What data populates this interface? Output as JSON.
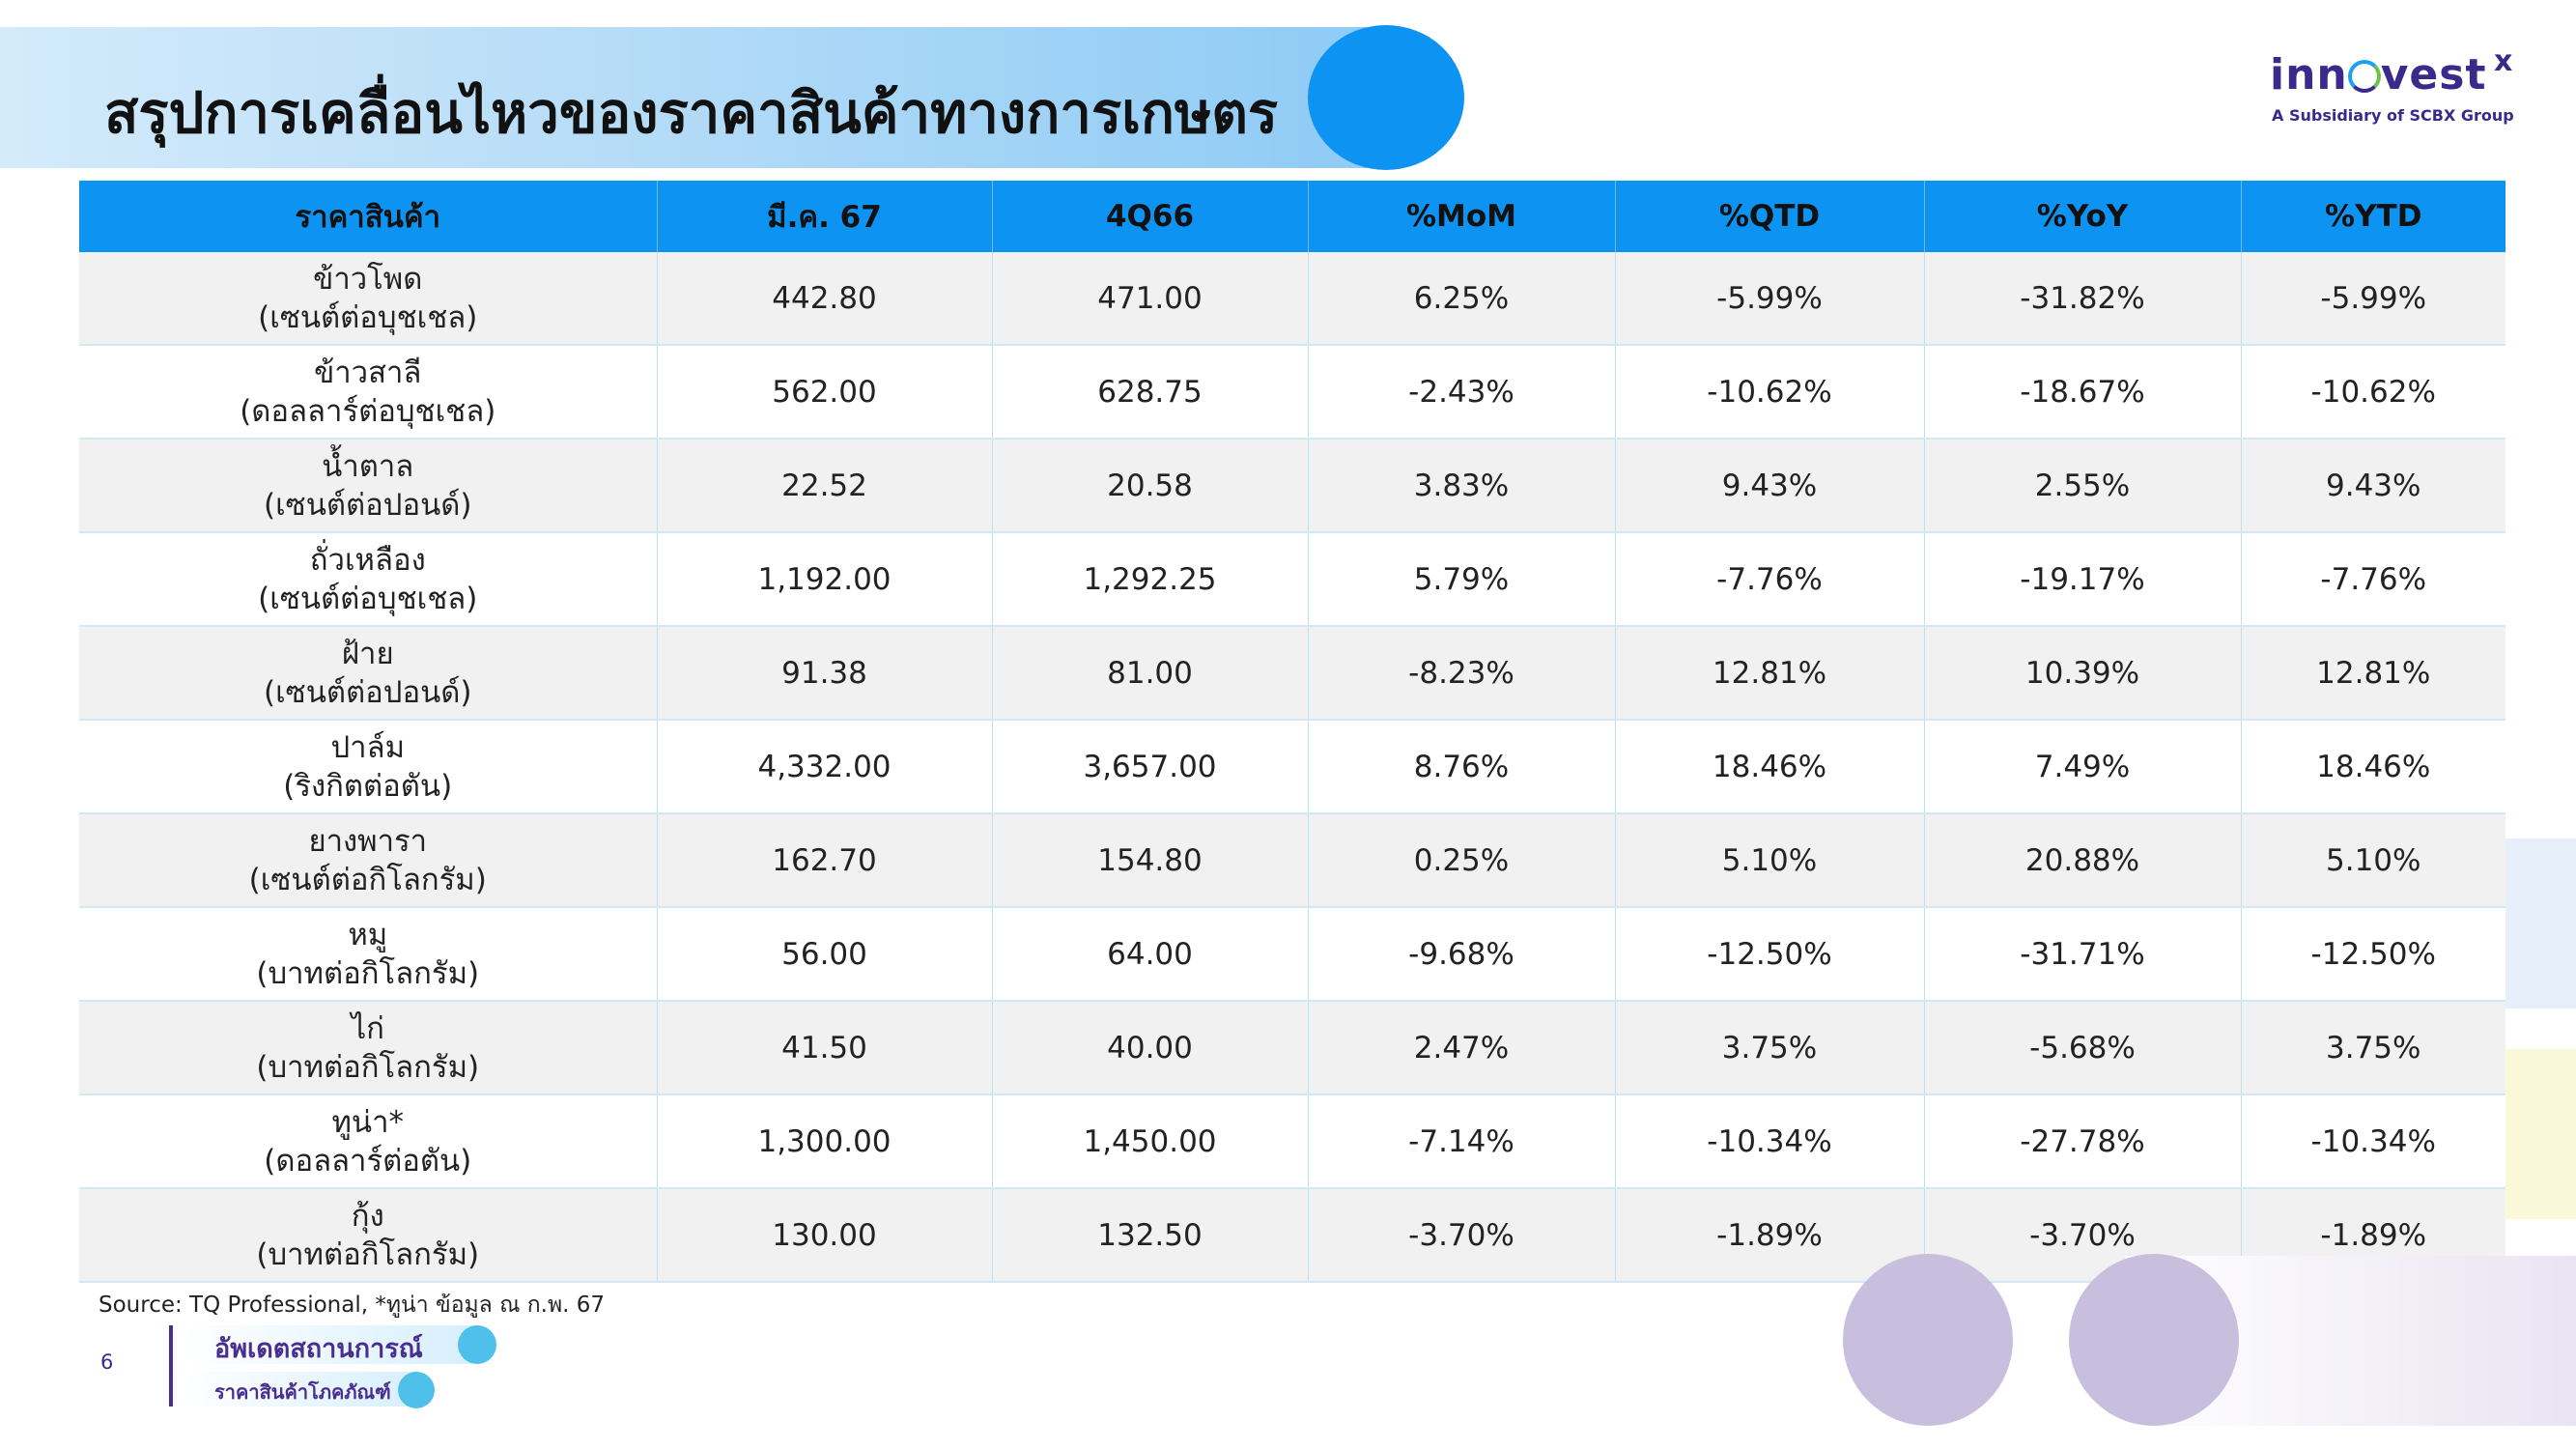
{
  "title": "สรุปการเคลื่อนไหวของราคาสินค้าทางการเกษตร",
  "logo": {
    "word_a": "inn",
    "word_b": "vest",
    "x": "x",
    "subtitle": "A Subsidiary of SCBX Group"
  },
  "table": {
    "headers": [
      "ราคาสินค้า",
      "มี.ค. 67",
      "4Q66",
      "%MoM",
      "%QTD",
      "%YoY",
      "%YTD"
    ],
    "rows": [
      {
        "name": "ข้าวโพด",
        "unit": "(เซนต์ต่อบุชเชล)",
        "mar67": "442.80",
        "q466": "471.00",
        "mom": "6.25%",
        "qtd": "-5.99%",
        "yoy": "-31.82%",
        "ytd": "-5.99%"
      },
      {
        "name": "ข้าวสาลี",
        "unit": "(ดอลลาร์ต่อบุชเชล)",
        "mar67": "562.00",
        "q466": "628.75",
        "mom": "-2.43%",
        "qtd": "-10.62%",
        "yoy": "-18.67%",
        "ytd": "-10.62%"
      },
      {
        "name": "น้ำตาล",
        "unit": "(เซนต์ต่อปอนด์)",
        "mar67": "22.52",
        "q466": "20.58",
        "mom": "3.83%",
        "qtd": "9.43%",
        "yoy": "2.55%",
        "ytd": "9.43%"
      },
      {
        "name": "ถั่วเหลือง",
        "unit": "(เซนต์ต่อบุชเชล)",
        "mar67": "1,192.00",
        "q466": "1,292.25",
        "mom": "5.79%",
        "qtd": "-7.76%",
        "yoy": "-19.17%",
        "ytd": "-7.76%"
      },
      {
        "name": "ฝ้าย",
        "unit": "(เซนต์ต่อปอนด์)",
        "mar67": "91.38",
        "q466": "81.00",
        "mom": "-8.23%",
        "qtd": "12.81%",
        "yoy": "10.39%",
        "ytd": "12.81%"
      },
      {
        "name": "ปาล์ม",
        "unit": "(ริงกิตต่อตัน)",
        "mar67": "4,332.00",
        "q466": "3,657.00",
        "mom": "8.76%",
        "qtd": "18.46%",
        "yoy": "7.49%",
        "ytd": "18.46%"
      },
      {
        "name": "ยางพารา",
        "unit": "(เซนต์ต่อกิโลกรัม)",
        "mar67": "162.70",
        "q466": "154.80",
        "mom": "0.25%",
        "qtd": "5.10%",
        "yoy": "20.88%",
        "ytd": "5.10%"
      },
      {
        "name": "หมู",
        "unit": "(บาทต่อกิโลกรัม)",
        "mar67": "56.00",
        "q466": "64.00",
        "mom": "-9.68%",
        "qtd": "-12.50%",
        "yoy": "-31.71%",
        "ytd": "-12.50%"
      },
      {
        "name": "ไก่",
        "unit": "(บาทต่อกิโลกรัม)",
        "mar67": "41.50",
        "q466": "40.00",
        "mom": "2.47%",
        "qtd": "3.75%",
        "yoy": "-5.68%",
        "ytd": "3.75%"
      },
      {
        "name": "ทูน่า*",
        "unit": "(ดอลลาร์ต่อตัน)",
        "mar67": "1,300.00",
        "q466": "1,450.00",
        "mom": "-7.14%",
        "qtd": "-10.34%",
        "yoy": "-27.78%",
        "ytd": "-10.34%"
      },
      {
        "name": "กุ้ง",
        "unit": "(บาทต่อกิโลกรัม)",
        "mar67": "130.00",
        "q466": "132.50",
        "mom": "-3.70%",
        "qtd": "-1.89%",
        "yoy": "-3.70%",
        "ytd": "-1.89%"
      }
    ]
  },
  "source": "Source: TQ Professional, *ทูน่า ข้อมูล ณ ก.พ. 67",
  "page_number": "6",
  "section_tag": "อัพเดตสถานการณ์",
  "section_subtag": "ราคาสินค้าโภคภัณฑ์"
}
